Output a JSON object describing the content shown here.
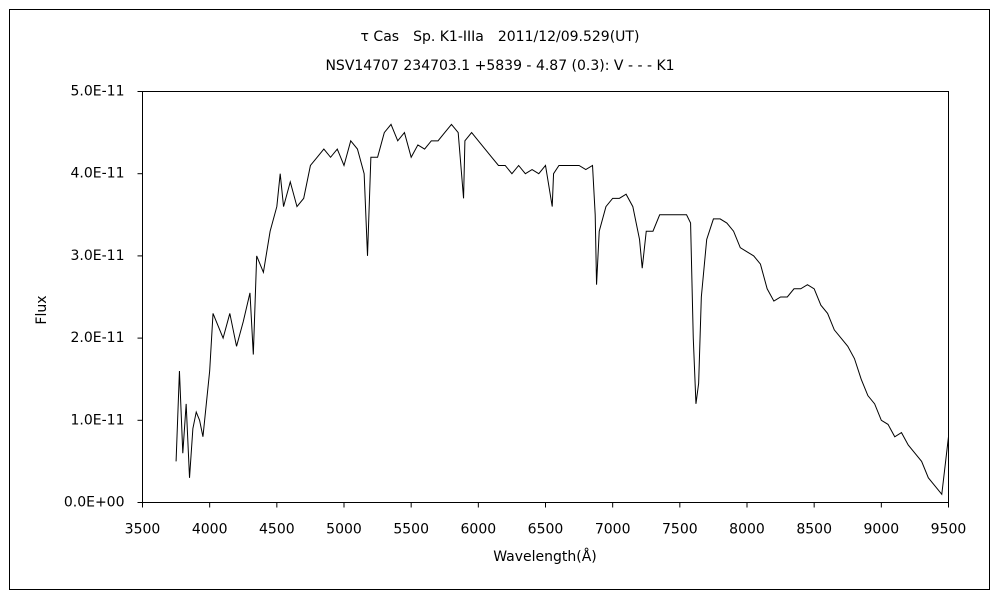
{
  "chart_data": {
    "type": "line",
    "title": "τ Cas　Sp. K1-IIIa　2011/12/09.529(UT)",
    "subtitle": "NSV14707 234703.1 +5839 - 4.87 (0.3): V - - - K1",
    "xlabel": "Wavelength(Å)",
    "ylabel": "Flux",
    "xlim": [
      3500,
      9500
    ],
    "xticks": [
      3500,
      4000,
      4500,
      5000,
      5500,
      6000,
      6500,
      7000,
      7500,
      8000,
      8500,
      9000,
      9500
    ],
    "ylim": [
      0,
      5e-11
    ],
    "yticks": [
      {
        "value": 0,
        "label": "0.0E+00"
      },
      {
        "value": 1e-11,
        "label": "1.0E-11"
      },
      {
        "value": 2e-11,
        "label": "2.0E-11"
      },
      {
        "value": 3e-11,
        "label": "3.0E-11"
      },
      {
        "value": 4e-11,
        "label": "4.0E-11"
      },
      {
        "value": 5e-11,
        "label": "5.0E-11"
      }
    ],
    "grid": false,
    "series": [
      {
        "color": "#000000",
        "x": [
          3750,
          3775,
          3800,
          3825,
          3850,
          3875,
          3900,
          3925,
          3950,
          3975,
          4000,
          4025,
          4050,
          4100,
          4150,
          4200,
          4250,
          4300,
          4325,
          4350,
          4400,
          4450,
          4500,
          4525,
          4550,
          4600,
          4650,
          4700,
          4750,
          4800,
          4850,
          4900,
          4950,
          5000,
          5050,
          5100,
          5150,
          5175,
          5200,
          5250,
          5300,
          5350,
          5400,
          5450,
          5500,
          5550,
          5600,
          5650,
          5700,
          5750,
          5800,
          5850,
          5890,
          5900,
          5950,
          6000,
          6050,
          6100,
          6150,
          6200,
          6250,
          6300,
          6350,
          6400,
          6450,
          6500,
          6550,
          6560,
          6600,
          6650,
          6700,
          6750,
          6800,
          6850,
          6870,
          6880,
          6900,
          6950,
          7000,
          7050,
          7100,
          7150,
          7200,
          7220,
          7250,
          7300,
          7350,
          7400,
          7450,
          7500,
          7550,
          7580,
          7600,
          7620,
          7640,
          7660,
          7700,
          7750,
          7800,
          7850,
          7900,
          7950,
          8000,
          8050,
          8100,
          8150,
          8200,
          8250,
          8300,
          8350,
          8400,
          8450,
          8500,
          8550,
          8600,
          8650,
          8700,
          8750,
          8800,
          8850,
          8900,
          8950,
          9000,
          9050,
          9100,
          9150,
          9200,
          9250,
          9300,
          9350,
          9400,
          9450,
          9500
        ],
        "values": [
          5e-12,
          1.6e-11,
          6e-12,
          1.2e-11,
          3e-12,
          9e-12,
          1.1e-11,
          1e-11,
          8e-12,
          1.2e-11,
          1.6e-11,
          2.3e-11,
          2.2e-11,
          2e-11,
          2.3e-11,
          1.9e-11,
          2.2e-11,
          2.55e-11,
          1.8e-11,
          3e-11,
          2.8e-11,
          3.3e-11,
          3.6e-11,
          4e-11,
          3.6e-11,
          3.9e-11,
          3.6e-11,
          3.7e-11,
          4.1e-11,
          4.2e-11,
          4.3e-11,
          4.2e-11,
          4.3e-11,
          4.1e-11,
          4.4e-11,
          4.3e-11,
          4e-11,
          3e-11,
          4.2e-11,
          4.2e-11,
          4.5e-11,
          4.6e-11,
          4.4e-11,
          4.5e-11,
          4.2e-11,
          4.35e-11,
          4.3e-11,
          4.4e-11,
          4.4e-11,
          4.5e-11,
          4.6e-11,
          4.5e-11,
          3.7e-11,
          4.4e-11,
          4.5e-11,
          4.4e-11,
          4.3e-11,
          4.2e-11,
          4.1e-11,
          4.1e-11,
          4e-11,
          4.1e-11,
          4e-11,
          4.05e-11,
          4e-11,
          4.1e-11,
          3.6e-11,
          4e-11,
          4.1e-11,
          4.1e-11,
          4.1e-11,
          4.1e-11,
          4.05e-11,
          4.1e-11,
          3.5e-11,
          2.65e-11,
          3.3e-11,
          3.6e-11,
          3.7e-11,
          3.7e-11,
          3.75e-11,
          3.6e-11,
          3.2e-11,
          2.85e-11,
          3.3e-11,
          3.3e-11,
          3.5e-11,
          3.5e-11,
          3.5e-11,
          3.5e-11,
          3.5e-11,
          3.4e-11,
          2e-11,
          1.2e-11,
          1.45e-11,
          2.5e-11,
          3.2e-11,
          3.45e-11,
          3.45e-11,
          3.4e-11,
          3.3e-11,
          3.1e-11,
          3.05e-11,
          3e-11,
          2.9e-11,
          2.6e-11,
          2.45e-11,
          2.5e-11,
          2.5e-11,
          2.6e-11,
          2.6e-11,
          2.65e-11,
          2.6e-11,
          2.4e-11,
          2.3e-11,
          2.1e-11,
          2e-11,
          1.9e-11,
          1.75e-11,
          1.5e-11,
          1.3e-11,
          1.2e-11,
          1e-11,
          9.5e-12,
          8e-12,
          8.5e-12,
          7e-12,
          6e-12,
          5e-12,
          3e-12,
          2e-12,
          1e-12,
          8e-12
        ]
      }
    ]
  }
}
